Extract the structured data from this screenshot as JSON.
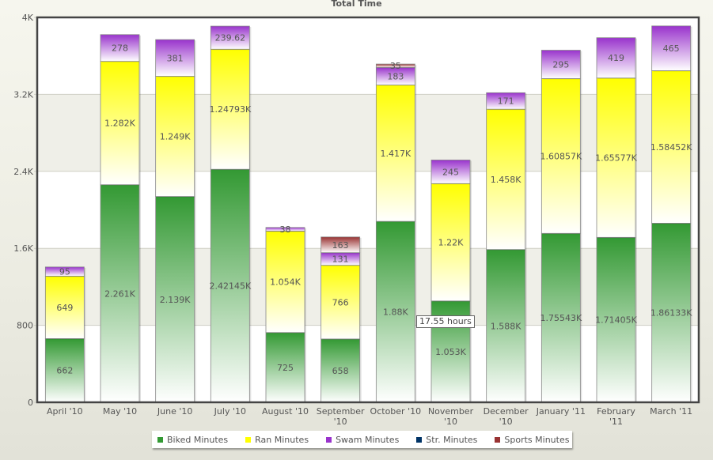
{
  "chart_data": {
    "type": "bar",
    "stacked": true,
    "title": "Total Time",
    "xlabel": "",
    "ylabel": "",
    "ylim": [
      0,
      4000
    ],
    "yticks": [
      {
        "value": 0,
        "label": "0"
      },
      {
        "value": 800,
        "label": "800"
      },
      {
        "value": 1600,
        "label": "1.6K"
      },
      {
        "value": 2400,
        "label": "2.4K"
      },
      {
        "value": 3200,
        "label": "3.2K"
      },
      {
        "value": 4000,
        "label": "4K"
      }
    ],
    "grid": true,
    "legend_position": "bottom-center",
    "categories": [
      [
        "April '10"
      ],
      [
        "May '10"
      ],
      [
        "June '10"
      ],
      [
        "July '10"
      ],
      [
        "August '10"
      ],
      [
        "September",
        "'10"
      ],
      [
        "October '10"
      ],
      [
        "November",
        "'10"
      ],
      [
        "December",
        "'10"
      ],
      [
        "January '11"
      ],
      [
        "February",
        "'11"
      ],
      [
        "March '11"
      ]
    ],
    "series": [
      {
        "name": "Biked Minutes",
        "color": "#339933",
        "values": [
          662,
          2261,
          2139,
          2421.45,
          725,
          658,
          1880,
          1053,
          1588,
          1755.43,
          1714.05,
          1861.33
        ],
        "labels": [
          "662",
          "2.261K",
          "2.139K",
          "2.42145K",
          "725",
          "658",
          "1.88K",
          "1.053K",
          "1.588K",
          "1.75543K",
          "1.71405K",
          "1.86133K"
        ]
      },
      {
        "name": "Ran Minutes",
        "color": "#ffff00",
        "values": [
          649,
          1282,
          1249,
          1247.93,
          1054,
          766,
          1417,
          1220,
          1458,
          1608.57,
          1655.77,
          1584.52
        ],
        "labels": [
          "649",
          "1.282K",
          "1.249K",
          "1.24793K",
          "1.054K",
          "766",
          "1.417K",
          "1.22K",
          "1.458K",
          "1.60857K",
          "1.65577K",
          "1.58452K"
        ]
      },
      {
        "name": "Swam Minutes",
        "color": "#9933cc",
        "values": [
          95,
          278,
          381,
          239.62,
          38,
          131,
          183,
          245,
          171,
          295,
          419,
          465
        ],
        "labels": [
          "95",
          "278",
          "381",
          "239.62",
          "38",
          "131",
          "183",
          "245",
          "171",
          "295",
          "419",
          "465"
        ]
      },
      {
        "name": "Str. Minutes",
        "color": "#003366",
        "values": [
          0,
          0,
          0,
          0,
          0,
          0,
          0,
          0,
          0,
          0,
          0,
          0
        ],
        "labels": [
          "",
          "",
          "",
          "",
          "",
          "",
          "",
          "",
          "",
          "",
          "",
          ""
        ]
      },
      {
        "name": "Sports Minutes",
        "color": "#993333",
        "values": [
          0,
          0,
          0,
          0,
          0,
          163,
          35,
          0,
          0,
          0,
          0,
          0
        ],
        "labels": [
          "",
          "",
          "",
          "",
          "",
          "163",
          "35",
          "",
          "",
          "",
          "",
          ""
        ]
      }
    ],
    "tooltip": {
      "text": "17.55 hours",
      "category_index": 7,
      "series": "Biked Minutes"
    }
  }
}
